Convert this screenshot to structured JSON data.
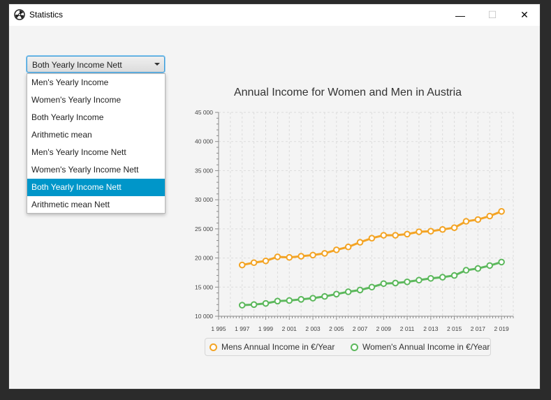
{
  "window": {
    "title": "Statistics",
    "minimize_glyph": "—",
    "maximize_glyph": "☐",
    "close_glyph": "✕"
  },
  "combo": {
    "selected": "Both Yearly Income Nett",
    "options": [
      "Men's Yearly Income",
      "Women's Yearly Income",
      "Both Yearly Income",
      "Arithmetic mean",
      "Men's Yearly Income Nett",
      "Women's Yearly Income Nett",
      "Both Yearly Income Nett",
      "Arithmetic mean Nett"
    ],
    "selected_index": 6
  },
  "chart_data": {
    "type": "line",
    "title": "Annual Income for Women and Men in Austria",
    "xlabel": "",
    "ylabel": "",
    "xlim": [
      1995,
      2020
    ],
    "ylim": [
      10000,
      45000
    ],
    "x_ticks": [
      "1 995",
      "1 997",
      "1 999",
      "2 001",
      "2 003",
      "2 005",
      "2 007",
      "2 009",
      "2 011",
      "2 013",
      "2 015",
      "2 017",
      "2 019"
    ],
    "y_ticks": [
      "10 000",
      "15 000",
      "20 000",
      "25 000",
      "30 000",
      "35 000",
      "40 000",
      "45 000"
    ],
    "grid": true,
    "legend_position": "bottom",
    "x": [
      1997,
      1998,
      1999,
      2000,
      2001,
      2002,
      2003,
      2004,
      2005,
      2006,
      2007,
      2008,
      2009,
      2010,
      2011,
      2012,
      2013,
      2014,
      2015,
      2016,
      2017,
      2018,
      2019
    ],
    "series": [
      {
        "name": "Mens Annual Income in €/Year",
        "color": "#f3a425",
        "values": [
          18800,
          19200,
          19500,
          20200,
          20100,
          20300,
          20500,
          20800,
          21400,
          21900,
          22700,
          23400,
          23900,
          23900,
          24100,
          24500,
          24600,
          24900,
          25200,
          26300,
          26600,
          27200,
          28000
        ]
      },
      {
        "name": "Women's Annual Income in €/Year",
        "color": "#5cb85c",
        "values": [
          11900,
          12000,
          12200,
          12600,
          12700,
          12900,
          13100,
          13400,
          13800,
          14200,
          14500,
          15000,
          15600,
          15700,
          15900,
          16200,
          16500,
          16700,
          17000,
          17900,
          18200,
          18700,
          19300
        ]
      }
    ]
  }
}
